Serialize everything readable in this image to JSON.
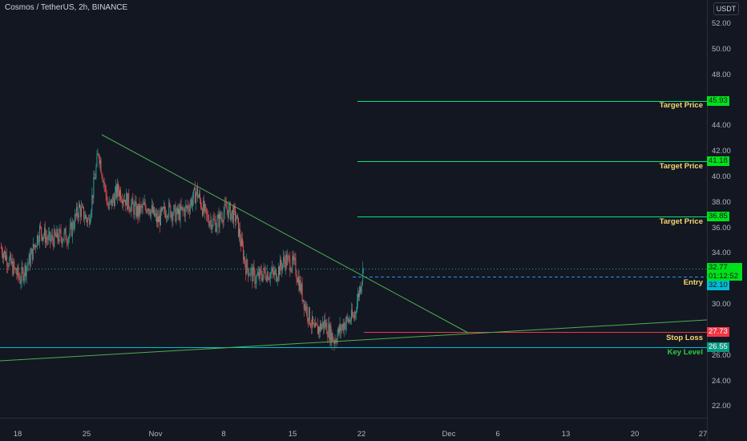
{
  "header": {
    "symbol": "Cosmos / TetherUS, 2h, BINANCE",
    "currency": "USDT"
  },
  "colors": {
    "bg": "#131722",
    "up": "#26a69a",
    "down": "#ef5350",
    "green": "#00e676",
    "target_tag": "#00e11a",
    "stop_tag": "#f23645",
    "key_tag": "#089981",
    "entry_tag": "#00bcd4",
    "anno_yellow": "#f5d76e",
    "anno_green": "#2ecc40"
  },
  "y_axis": {
    "ticks": [
      "52.00",
      "50.00",
      "48.00",
      "44.00",
      "42.00",
      "40.00",
      "38.00",
      "36.00",
      "34.00",
      "30.00",
      "26.00",
      "24.00",
      "22.00"
    ]
  },
  "x_axis": {
    "ticks": [
      "18",
      "25",
      "Nov",
      "8",
      "15",
      "22",
      "Dec",
      "6",
      "13",
      "20",
      "27"
    ]
  },
  "levels": {
    "target1": {
      "price": "45.93",
      "label": "Target Price"
    },
    "target2": {
      "price": "41.18",
      "label": "Target Price"
    },
    "target3": {
      "price": "36.85",
      "label": "Target Price"
    },
    "current": {
      "price": "32.77",
      "countdown": "01:12:52"
    },
    "entry": {
      "price": "32.10",
      "label": "Entry"
    },
    "stop": {
      "price": "27.73",
      "label": "Stop Loss"
    },
    "key": {
      "price": "26.55",
      "label": "Key Level"
    }
  },
  "chart_data": {
    "type": "candlestick",
    "title": "Cosmos / TetherUS, 2h, BINANCE",
    "ylim": [
      21,
      53
    ],
    "close_path": [
      [
        "Oct 16",
        34.5
      ],
      [
        "Oct 17",
        33.2
      ],
      [
        "Oct 18",
        32.0
      ],
      [
        "Oct 19",
        33.5
      ],
      [
        "Oct 20",
        35.8
      ],
      [
        "Oct 21",
        35.0
      ],
      [
        "Oct 22",
        35.3
      ],
      [
        "Oct 23",
        35.4
      ],
      [
        "Oct 24",
        37.5
      ],
      [
        "Oct 25",
        36.5
      ],
      [
        "Oct 26",
        42.0
      ],
      [
        "Oct 27",
        37.5
      ],
      [
        "Oct 28",
        39.0
      ],
      [
        "Oct 29",
        38.0
      ],
      [
        "Oct 30",
        37.2
      ],
      [
        "Oct 31",
        37.8
      ],
      [
        "Nov 1",
        36.5
      ],
      [
        "Nov 2",
        37.5
      ],
      [
        "Nov 3",
        37.0
      ],
      [
        "Nov 4",
        37.5
      ],
      [
        "Nov 5",
        38.8
      ],
      [
        "Nov 6",
        36.8
      ],
      [
        "Nov 7",
        36.3
      ],
      [
        "Nov 8",
        37.5
      ],
      [
        "Nov 9",
        36.8
      ],
      [
        "Nov 10",
        33.0
      ],
      [
        "Nov 11",
        32.0
      ],
      [
        "Nov 12",
        32.5
      ],
      [
        "Nov 13",
        32.3
      ],
      [
        "Nov 14",
        33.5
      ],
      [
        "Nov 15",
        33.0
      ],
      [
        "Nov 16",
        30.0
      ],
      [
        "Nov 17",
        27.8
      ],
      [
        "Nov 18",
        28.5
      ],
      [
        "Nov 19",
        27.2
      ],
      [
        "Nov 20",
        28.5
      ],
      [
        "Nov 21",
        29.0
      ],
      [
        "Nov 22",
        32.77
      ]
    ],
    "trendlines": [
      {
        "name": "descending resistance",
        "from": [
          "Oct 26",
          43.3
        ],
        "to": [
          "Dec 3",
          27.8
        ]
      },
      {
        "name": "ascending support",
        "from": [
          "Oct 16",
          25.6
        ],
        "to": [
          "Dec 27",
          28.8
        ]
      }
    ]
  }
}
